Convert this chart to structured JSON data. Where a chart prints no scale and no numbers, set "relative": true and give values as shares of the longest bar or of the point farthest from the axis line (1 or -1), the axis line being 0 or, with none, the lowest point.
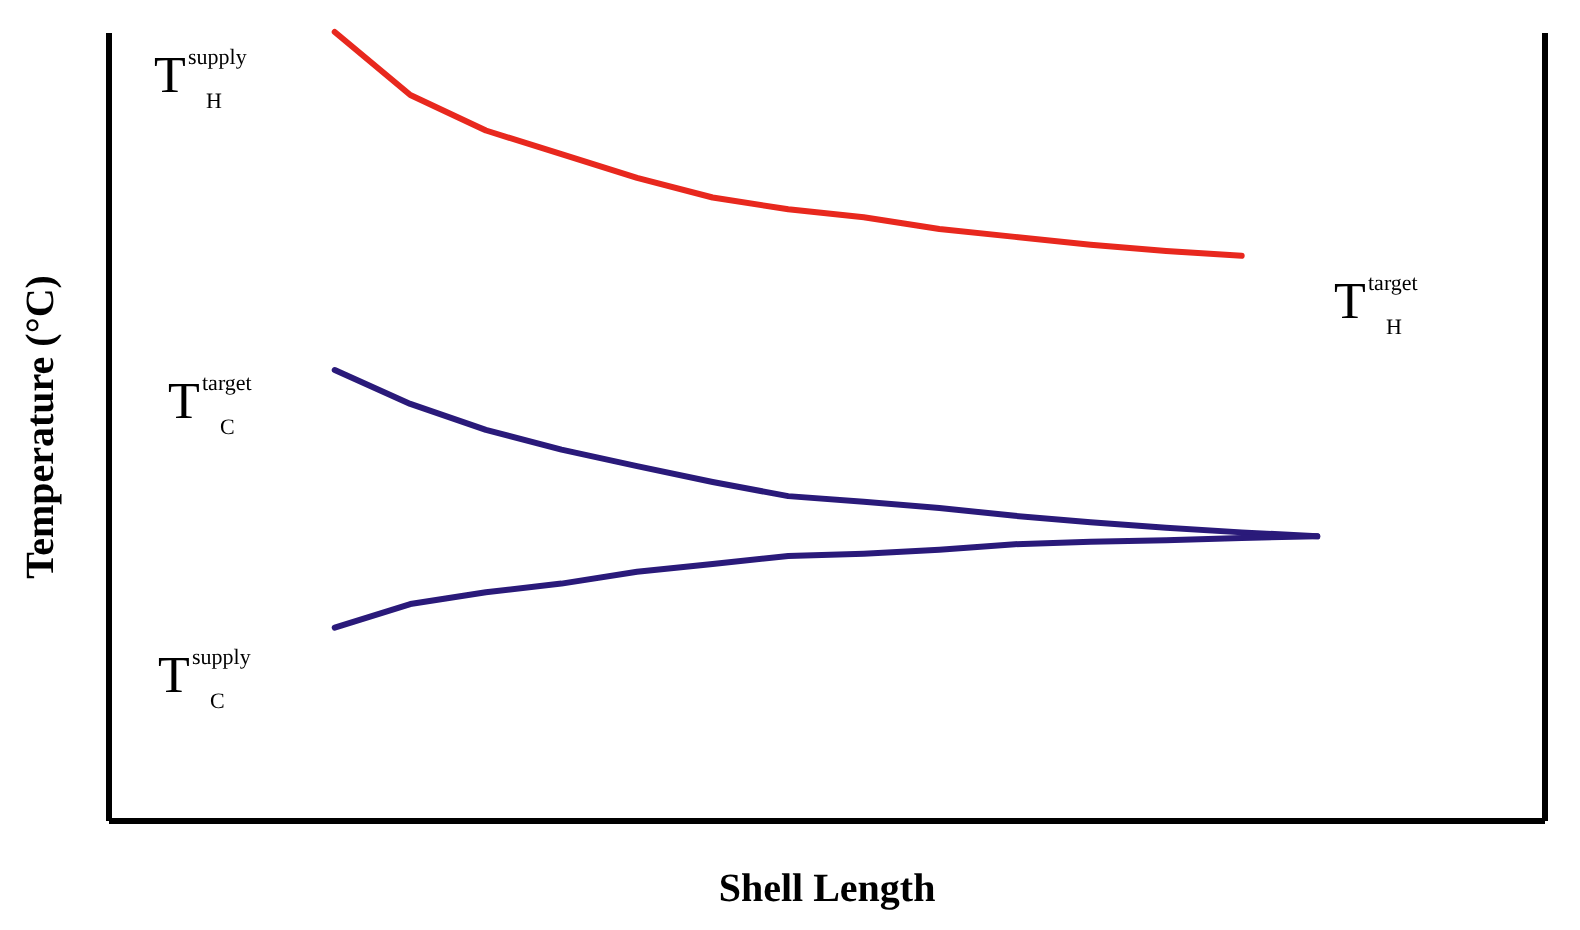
{
  "chart_data": {
    "type": "line",
    "relative": true,
    "xlabel": "Shell Length",
    "ylabel": "Temperature (°C)",
    "categories": [
      null,
      null,
      null,
      null,
      null,
      null,
      null,
      null,
      null,
      null,
      null,
      null,
      null,
      null,
      null,
      null,
      null,
      null,
      null,
      null
    ],
    "series": [
      {
        "color": "#e8281e",
        "values": [
          null,
          null,
          null,
          1.0,
          0.92,
          0.875,
          0.845,
          0.815,
          0.79,
          0.775,
          0.765,
          0.75,
          0.74,
          0.73,
          0.722,
          0.716,
          null,
          null,
          null,
          null
        ]
      },
      {
        "color": "#2a1a7a",
        "values": [
          null,
          null,
          null,
          0.571,
          0.528,
          0.495,
          0.47,
          0.449,
          0.429,
          0.411,
          0.404,
          0.396,
          0.386,
          0.378,
          0.371,
          0.365,
          0.36,
          null,
          null,
          null
        ]
      },
      {
        "color": "#2a1a7a",
        "values": [
          null,
          null,
          null,
          0.244,
          0.274,
          0.289,
          0.3,
          0.315,
          0.325,
          0.335,
          0.338,
          0.343,
          0.35,
          0.353,
          0.355,
          0.358,
          0.36,
          null,
          null,
          null
        ]
      }
    ],
    "annotations": [
      "T$^{supply}$$_{H}$",
      "T$^{target}$$_{H}$",
      "T$^{target}$$_{C}$",
      "T$^{supply}$$_{C}$"
    ]
  }
}
